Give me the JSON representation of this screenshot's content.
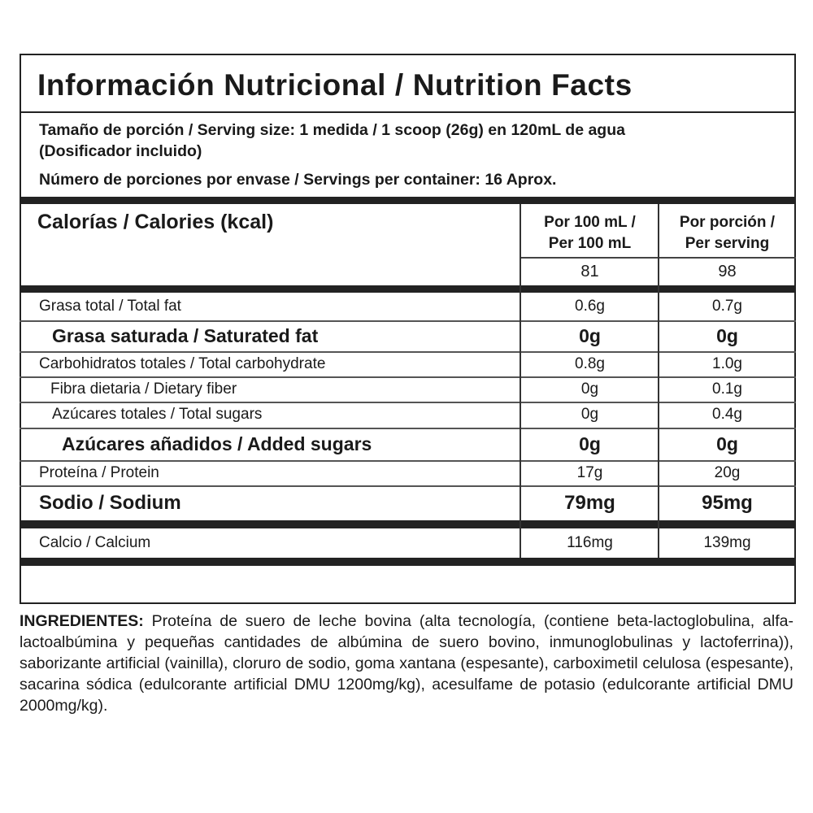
{
  "title": "Información Nutricional / Nutrition Facts",
  "serving": {
    "size": "Tamaño de porción / Serving size: 1 medida / 1 scoop (26g) en 120mL de agua",
    "note": "(Dosificador incluido)",
    "servings": "Número de porciones por envase / Servings per container: 16 Aprox."
  },
  "calories": {
    "label": "Calorías / Calories (kcal)",
    "col1_header_1": "Por 100 mL /",
    "col1_header_2": "Per 100 mL",
    "col2_header_1": "Por porción /",
    "col2_header_2": "Per serving",
    "per_100ml": "81",
    "per_serving": "98"
  },
  "rows": [
    {
      "label": "Grasa total / Total fat",
      "per_100ml": "0.6g",
      "per_serving": "0.7g"
    },
    {
      "label": "Grasa saturada / Saturated fat",
      "per_100ml": "0g",
      "per_serving": "0g"
    },
    {
      "label": "Carbohidratos totales / Total carbohydrate",
      "per_100ml": "0.8g",
      "per_serving": "1.0g"
    },
    {
      "label": "Fibra dietaria / Dietary fiber",
      "per_100ml": "0g",
      "per_serving": "0.1g"
    },
    {
      "label": "Azúcares totales / Total sugars",
      "per_100ml": "0g",
      "per_serving": "0.4g"
    },
    {
      "label": "Azúcares añadidos / Added sugars",
      "per_100ml": "0g",
      "per_serving": "0g"
    },
    {
      "label": "Proteína / Protein",
      "per_100ml": "17g",
      "per_serving": "20g"
    },
    {
      "label": "Sodio / Sodium",
      "per_100ml": "79mg",
      "per_serving": "95mg"
    },
    {
      "label": "Calcio / Calcium",
      "per_100ml": "116mg",
      "per_serving": "139mg"
    }
  ],
  "ingredients": {
    "heading": "INGREDIENTES:",
    "text": " Proteína de suero de leche bovina (alta tecnología, (contiene beta-lactoglobulina, alfa-lactoalbúmina y pequeñas cantidades de albúmina de suero bovino, inmunoglobulinas y lactoferrina)), saborizante artificial (vainilla), cloruro de sodio, goma xantana (espesante), carboximetil celulosa (espesante), sacarina sódica (edulcorante artificial DMU 1200mg/kg), acesulfame de potasio (edulcorante artificial DMU 2000mg/kg)."
  }
}
